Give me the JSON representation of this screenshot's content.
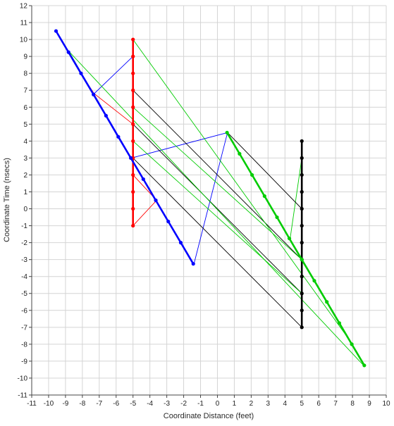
{
  "chart_data": {
    "type": "line",
    "title": "",
    "xlabel": "Coordinate Distance (feet)",
    "ylabel": "Coordinate Time (nsecs)",
    "xlim": [
      -11,
      10
    ],
    "ylim": [
      -11,
      12
    ],
    "xticks": [
      -11,
      -10,
      -9,
      -8,
      -7,
      -6,
      -5,
      -4,
      -3,
      -2,
      -1,
      0,
      1,
      2,
      3,
      4,
      5,
      6,
      7,
      8,
      9,
      10
    ],
    "yticks": [
      -11,
      -10,
      -9,
      -8,
      -7,
      -6,
      -5,
      -4,
      -3,
      -2,
      -1,
      0,
      1,
      2,
      3,
      4,
      5,
      6,
      7,
      8,
      9,
      10,
      11,
      12
    ],
    "grid": true,
    "series": [
      {
        "color": "#ff0000",
        "role": "worldline",
        "points": [
          [
            -5,
            -1
          ],
          [
            -5,
            0
          ],
          [
            -5,
            1
          ],
          [
            -5,
            2
          ],
          [
            -5,
            3
          ],
          [
            -5,
            4
          ],
          [
            -5,
            5
          ],
          [
            -5,
            6
          ],
          [
            -5,
            7
          ],
          [
            -5,
            8
          ],
          [
            -5,
            9
          ],
          [
            -5,
            10
          ]
        ]
      },
      {
        "color": "#0000ff",
        "role": "worldline",
        "points": [
          [
            -9.56,
            10.5
          ],
          [
            -8.82,
            9.25
          ],
          [
            -8.08,
            8
          ],
          [
            -7.34,
            6.75
          ],
          [
            -6.6,
            5.5
          ],
          [
            -5.87,
            4.25
          ],
          [
            -5.13,
            3
          ],
          [
            -4.39,
            1.75
          ],
          [
            -3.65,
            0.5
          ],
          [
            -2.91,
            -0.75
          ],
          [
            -2.17,
            -2
          ],
          [
            -1.43,
            -3.25
          ]
        ]
      },
      {
        "color": "#000000",
        "role": "worldline",
        "points": [
          [
            5,
            -7
          ],
          [
            5,
            -6
          ],
          [
            5,
            -5
          ],
          [
            5,
            -4
          ],
          [
            5,
            -3
          ],
          [
            5,
            -2
          ],
          [
            5,
            -1
          ],
          [
            5,
            0
          ],
          [
            5,
            1
          ],
          [
            5,
            2
          ],
          [
            5,
            3
          ],
          [
            5,
            4
          ]
        ]
      },
      {
        "color": "#00cc00",
        "role": "worldline",
        "points": [
          [
            0.57,
            4.5
          ],
          [
            1.31,
            3.25
          ],
          [
            2.05,
            2
          ],
          [
            2.79,
            0.75
          ],
          [
            3.53,
            -0.5
          ],
          [
            4.26,
            -1.75
          ],
          [
            5,
            -3
          ],
          [
            5.74,
            -4.25
          ],
          [
            6.48,
            -5.5
          ],
          [
            7.22,
            -6.75
          ],
          [
            7.96,
            -8
          ],
          [
            8.7,
            -9.25
          ]
        ]
      },
      {
        "color": "#ff0000",
        "role": "signal",
        "points": [
          [
            -5,
            -1
          ],
          [
            -3.6,
            0.5
          ],
          [
            -5,
            2
          ]
        ]
      },
      {
        "color": "#ff0000",
        "role": "signal",
        "points": [
          [
            -5,
            5
          ],
          [
            -7.3,
            6.8
          ],
          [
            -8.1,
            8
          ]
        ]
      },
      {
        "color": "#0000ff",
        "role": "signal",
        "points": [
          [
            -5,
            9
          ],
          [
            -7.3,
            6.8
          ]
        ]
      },
      {
        "color": "#0000ff",
        "role": "signal",
        "points": [
          [
            -5.1,
            3
          ],
          [
            0.6,
            4.5
          ]
        ]
      },
      {
        "color": "#0000ff",
        "role": "signal",
        "points": [
          [
            -1.4,
            -3.3
          ],
          [
            0.6,
            4.5
          ]
        ]
      },
      {
        "color": "#00cc00",
        "role": "signal",
        "points": [
          [
            -8.8,
            9.3
          ],
          [
            -6.6,
            5.5
          ]
        ]
      },
      {
        "color": "#00cc00",
        "role": "signal",
        "points": [
          [
            5,
            3
          ],
          [
            4.3,
            -1.8
          ]
        ]
      },
      {
        "color": "#000000",
        "role": "signal",
        "points": [
          [
            -5,
            7
          ],
          [
            5,
            -3
          ]
        ]
      },
      {
        "color": "#000000",
        "role": "signal",
        "points": [
          [
            -5,
            5
          ],
          [
            5,
            -5
          ]
        ]
      },
      {
        "color": "#000000",
        "role": "signal",
        "points": [
          [
            -5,
            3
          ],
          [
            5,
            -7
          ]
        ]
      },
      {
        "color": "#000000",
        "role": "signal",
        "points": [
          [
            0.6,
            4.5
          ],
          [
            5,
            0
          ]
        ]
      },
      {
        "color": "#00cc00",
        "role": "signal",
        "points": [
          [
            -5,
            10
          ],
          [
            8,
            -8
          ]
        ]
      },
      {
        "color": "#00cc00",
        "role": "signal",
        "points": [
          [
            -8.8,
            9.3
          ],
          [
            8.7,
            -9.3
          ]
        ]
      },
      {
        "color": "#00cc00",
        "role": "signal",
        "points": [
          [
            -5,
            6
          ],
          [
            5,
            -3
          ]
        ]
      },
      {
        "color": "#00cc00",
        "role": "signal",
        "points": [
          [
            -5,
            4
          ],
          [
            5,
            -5
          ]
        ]
      }
    ]
  }
}
